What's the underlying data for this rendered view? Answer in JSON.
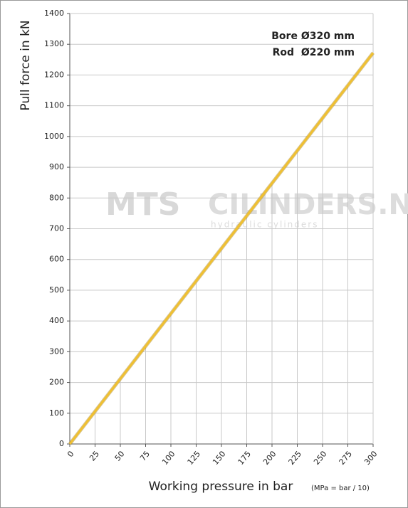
{
  "chart_data": {
    "type": "line",
    "ylabel": "Pull force in kN",
    "xlabel": "Working pressure in bar",
    "xlabel_note": "(MPa = bar / 10)",
    "annotations": [
      "Bore Ø320 mm",
      "Rod  Ø220 mm"
    ],
    "watermark": [
      "MTS",
      "CILINDERS.NL",
      "hydraulic cylinders"
    ],
    "x": [
      0,
      25,
      50,
      75,
      100,
      125,
      150,
      175,
      200,
      225,
      250,
      275,
      300
    ],
    "series": [
      {
        "name": "Pull force",
        "color": "#f0c030",
        "values": [
          0,
          106,
          212,
          318,
          424,
          530,
          636,
          742,
          848,
          954,
          1060,
          1166,
          1272
        ]
      }
    ],
    "xlim": [
      0,
      300
    ],
    "ylim": [
      0,
      1400
    ],
    "xticks": [
      0,
      25,
      50,
      75,
      100,
      125,
      150,
      175,
      200,
      225,
      250,
      275,
      300
    ],
    "yticks": [
      0,
      100,
      200,
      300,
      400,
      500,
      600,
      700,
      800,
      900,
      1000,
      1100,
      1200,
      1300,
      1400
    ],
    "grid": true
  }
}
